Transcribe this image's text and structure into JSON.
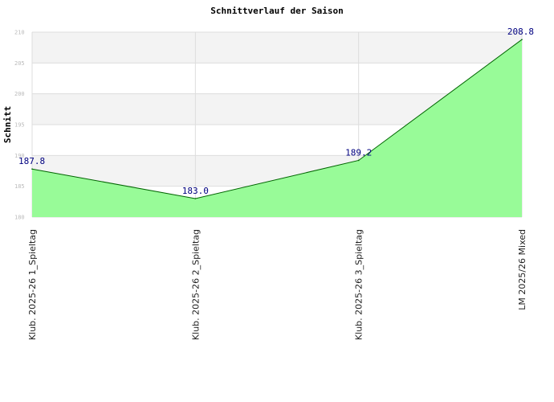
{
  "chart_data": {
    "type": "area",
    "title": "Schnittverlauf der Saison",
    "ylabel": "Schnitt",
    "xlabel": "",
    "categories": [
      "Klub. 2025-26  1_Spieltag",
      "Klub. 2025-26  2_Spieltag",
      "Klub. 2025-26  3_Spieltag",
      "LM 2025/26 Mixed"
    ],
    "values": [
      187.8,
      183.0,
      189.2,
      208.8
    ],
    "data_labels": [
      "187.8",
      "183.0",
      "189.2",
      "208.8"
    ],
    "ylim": [
      180,
      210
    ],
    "yticks": [
      180,
      185,
      190,
      195,
      200,
      205,
      210
    ],
    "grid": true,
    "legend": "none",
    "colors": {
      "fill": "#98fb98",
      "line": "#006400",
      "band_alt": "#f3f3f3",
      "band": "#ffffff",
      "gridline": "#dddddd",
      "data_label": "#000080"
    }
  }
}
